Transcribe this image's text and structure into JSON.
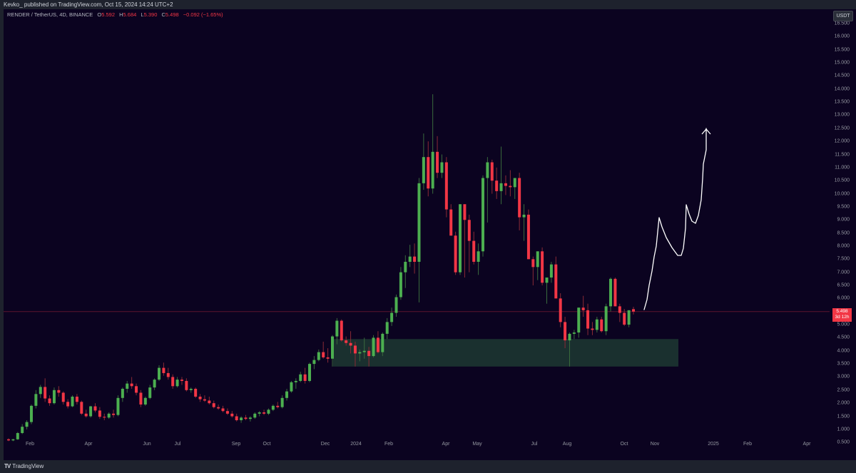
{
  "header": {
    "published": "Kevko_ published on TradingView.com, Oct 15, 2024 14:24 UTC+2"
  },
  "legend": {
    "symbol": "RENDER / TetherUS, 4D, BINANCE",
    "o_label": "O",
    "o": "5.592",
    "h_label": "H",
    "h": "5.684",
    "l_label": "L",
    "l": "5.390",
    "c_label": "C",
    "c": "5.498",
    "change": "−0.092 (−1.65%)"
  },
  "axis": {
    "currency": "USDT",
    "last_price": "5.498",
    "countdown": "3d 12h"
  },
  "footer": {
    "brand": "TradingView",
    "logo": "TV"
  },
  "colors": {
    "up": "#4caf50",
    "down": "#f23645",
    "bg": "#0b0320",
    "zone": "#1b3330",
    "drawing": "#ffffff"
  },
  "chart_data": {
    "type": "candlestick",
    "title": "RENDER / TetherUS, 4D, BINANCE",
    "xlabel": "",
    "ylabel": "USDT",
    "ylim": [
      0.3,
      16.7
    ],
    "yticks": [
      "16.500",
      "16.000",
      "15.500",
      "15.000",
      "14.500",
      "14.000",
      "13.500",
      "13.000",
      "12.500",
      "12.000",
      "11.500",
      "11.000",
      "10.500",
      "10.000",
      "9.500",
      "9.000",
      "8.500",
      "8.000",
      "7.500",
      "7.000",
      "6.500",
      "6.000",
      "5.500",
      "5.000",
      "4.500",
      "4.000",
      "3.500",
      "3.000",
      "2.500",
      "2.000",
      "1.500",
      "1.000",
      "0.500"
    ],
    "xticks": [
      {
        "label": "Feb",
        "x": 42
      },
      {
        "label": "Apr",
        "x": 124
      },
      {
        "label": "Jun",
        "x": 206
      },
      {
        "label": "Jul",
        "x": 249
      },
      {
        "label": "Sep",
        "x": 331
      },
      {
        "label": "Oct",
        "x": 374
      },
      {
        "label": "Dec",
        "x": 456
      },
      {
        "label": "2024",
        "x": 499
      },
      {
        "label": "Feb",
        "x": 545
      },
      {
        "label": "Apr",
        "x": 625
      },
      {
        "label": "May",
        "x": 669
      },
      {
        "label": "Jul",
        "x": 749
      },
      {
        "label": "Aug",
        "x": 795
      },
      {
        "label": "Oct",
        "x": 875
      },
      {
        "label": "Nov",
        "x": 918
      },
      {
        "label": "2025",
        "x": 1000
      },
      {
        "label": "Feb",
        "x": 1048
      },
      {
        "label": "Apr",
        "x": 1131
      }
    ],
    "support_zone": {
      "top": 4.45,
      "bottom": 3.4,
      "x_start": 467,
      "x_end": 951
    },
    "last_price": 5.498,
    "annotation": "hand-drawn upward projection arrow toward ~12.5",
    "candles": [
      [
        0.62,
        0.66,
        0.55,
        0.58
      ],
      [
        0.58,
        0.64,
        0.55,
        0.62
      ],
      [
        0.62,
        0.9,
        0.6,
        0.86
      ],
      [
        0.86,
        1.2,
        0.82,
        1.1
      ],
      [
        1.1,
        1.35,
        1.0,
        1.28
      ],
      [
        1.28,
        1.95,
        1.2,
        1.9
      ],
      [
        1.9,
        2.5,
        1.8,
        2.35
      ],
      [
        2.35,
        2.7,
        2.2,
        2.62
      ],
      [
        2.62,
        2.95,
        2.05,
        2.18
      ],
      [
        2.18,
        2.3,
        1.9,
        2.0
      ],
      [
        2.0,
        2.6,
        1.95,
        2.5
      ],
      [
        2.5,
        2.65,
        2.25,
        2.4
      ],
      [
        2.4,
        2.45,
        1.95,
        2.05
      ],
      [
        2.05,
        2.15,
        1.8,
        1.88
      ],
      [
        1.88,
        2.3,
        1.85,
        2.25
      ],
      [
        2.25,
        2.35,
        1.95,
        2.05
      ],
      [
        2.05,
        2.1,
        1.55,
        1.6
      ],
      [
        1.6,
        1.75,
        1.45,
        1.5
      ],
      [
        1.5,
        1.9,
        1.45,
        1.88
      ],
      [
        1.88,
        2.0,
        1.65,
        1.72
      ],
      [
        1.72,
        1.85,
        1.4,
        1.48
      ],
      [
        1.48,
        1.6,
        1.35,
        1.45
      ],
      [
        1.45,
        1.65,
        1.4,
        1.6
      ],
      [
        1.6,
        1.75,
        1.45,
        1.55
      ],
      [
        1.55,
        2.3,
        1.5,
        2.2
      ],
      [
        2.2,
        2.6,
        2.05,
        2.55
      ],
      [
        2.55,
        2.85,
        2.4,
        2.75
      ],
      [
        2.75,
        3.0,
        2.55,
        2.65
      ],
      [
        2.65,
        2.75,
        2.3,
        2.4
      ],
      [
        2.4,
        2.5,
        1.85,
        1.95
      ],
      [
        1.95,
        2.25,
        1.9,
        2.2
      ],
      [
        2.2,
        2.7,
        2.15,
        2.6
      ],
      [
        2.6,
        2.95,
        2.5,
        2.9
      ],
      [
        2.9,
        3.45,
        2.85,
        3.35
      ],
      [
        3.35,
        3.55,
        3.05,
        3.15
      ],
      [
        3.15,
        3.35,
        2.9,
        3.0
      ],
      [
        3.0,
        3.1,
        2.55,
        2.65
      ],
      [
        2.65,
        3.0,
        2.6,
        2.9
      ],
      [
        2.9,
        3.0,
        2.7,
        2.85
      ],
      [
        2.85,
        2.95,
        2.45,
        2.5
      ],
      [
        2.5,
        2.6,
        2.4,
        2.55
      ],
      [
        2.55,
        2.6,
        2.2,
        2.25
      ],
      [
        2.25,
        2.35,
        2.05,
        2.15
      ],
      [
        2.15,
        2.3,
        2.05,
        2.1
      ],
      [
        2.1,
        2.25,
        1.95,
        2.0
      ],
      [
        2.0,
        2.1,
        1.8,
        1.85
      ],
      [
        1.85,
        1.95,
        1.75,
        1.8
      ],
      [
        1.8,
        1.9,
        1.65,
        1.7
      ],
      [
        1.7,
        1.8,
        1.55,
        1.6
      ],
      [
        1.6,
        1.7,
        1.45,
        1.5
      ],
      [
        1.5,
        1.6,
        1.3,
        1.35
      ],
      [
        1.35,
        1.5,
        1.25,
        1.45
      ],
      [
        1.45,
        1.55,
        1.35,
        1.4
      ],
      [
        1.4,
        1.5,
        1.3,
        1.45
      ],
      [
        1.45,
        1.65,
        1.4,
        1.6
      ],
      [
        1.6,
        1.7,
        1.5,
        1.65
      ],
      [
        1.65,
        1.75,
        1.55,
        1.6
      ],
      [
        1.6,
        1.8,
        1.55,
        1.75
      ],
      [
        1.75,
        1.95,
        1.7,
        1.9
      ],
      [
        1.9,
        2.05,
        1.8,
        1.85
      ],
      [
        1.85,
        2.3,
        1.8,
        2.2
      ],
      [
        2.2,
        2.55,
        2.1,
        2.45
      ],
      [
        2.45,
        2.85,
        2.4,
        2.8
      ],
      [
        2.8,
        2.95,
        2.55,
        2.85
      ],
      [
        2.85,
        3.2,
        2.8,
        3.1
      ],
      [
        3.1,
        3.35,
        2.75,
        2.85
      ],
      [
        2.85,
        3.55,
        2.8,
        3.5
      ],
      [
        3.5,
        3.8,
        3.3,
        3.65
      ],
      [
        3.65,
        4.05,
        3.6,
        3.95
      ],
      [
        3.95,
        4.35,
        3.7,
        3.75
      ],
      [
        3.75,
        4.1,
        3.55,
        3.7
      ],
      [
        3.7,
        4.6,
        3.4,
        4.55
      ],
      [
        4.55,
        5.25,
        4.25,
        5.15
      ],
      [
        5.15,
        5.2,
        4.35,
        4.4
      ],
      [
        4.4,
        4.55,
        4.2,
        4.3
      ],
      [
        4.3,
        4.75,
        3.9,
        4.2
      ],
      [
        4.2,
        4.35,
        3.4,
        3.9
      ],
      [
        3.9,
        4.05,
        3.6,
        3.95
      ],
      [
        3.95,
        4.5,
        3.7,
        4.0
      ],
      [
        4.0,
        4.15,
        3.4,
        3.8
      ],
      [
        3.8,
        4.6,
        3.75,
        4.5
      ],
      [
        4.5,
        4.75,
        3.9,
        3.95
      ],
      [
        3.95,
        4.7,
        3.8,
        4.65
      ],
      [
        4.65,
        5.25,
        4.45,
        5.1
      ],
      [
        5.1,
        5.65,
        4.95,
        5.45
      ],
      [
        5.45,
        6.15,
        5.3,
        6.05
      ],
      [
        6.05,
        7.2,
        5.95,
        7.0
      ],
      [
        7.0,
        7.65,
        6.4,
        7.4
      ],
      [
        7.4,
        8.05,
        7.2,
        7.6
      ],
      [
        7.6,
        8.1,
        6.95,
        7.4
      ],
      [
        7.4,
        10.6,
        5.85,
        10.4
      ],
      [
        10.4,
        12.3,
        10.15,
        11.4
      ],
      [
        11.4,
        12.0,
        9.9,
        10.2
      ],
      [
        10.2,
        13.8,
        10.0,
        11.6
      ],
      [
        11.6,
        12.2,
        10.6,
        10.8
      ],
      [
        10.8,
        11.5,
        10.6,
        11.2
      ],
      [
        11.2,
        11.4,
        9.1,
        9.4
      ],
      [
        9.4,
        9.6,
        8.5,
        8.4
      ],
      [
        8.4,
        8.55,
        6.9,
        7.0
      ],
      [
        7.0,
        9.2,
        6.9,
        9.6
      ],
      [
        9.6,
        9.1,
        6.8,
        9.0
      ],
      [
        9.0,
        9.2,
        7.0,
        8.2
      ],
      [
        8.2,
        8.55,
        7.3,
        7.4
      ],
      [
        7.4,
        8.1,
        6.9,
        7.8
      ],
      [
        7.8,
        10.7,
        7.6,
        10.6
      ],
      [
        10.6,
        11.4,
        8.9,
        11.2
      ],
      [
        11.2,
        11.3,
        10.0,
        10.5
      ],
      [
        10.5,
        11.0,
        9.8,
        10.1
      ],
      [
        10.1,
        11.8,
        9.6,
        10.4
      ],
      [
        10.4,
        10.7,
        9.95,
        10.3
      ],
      [
        10.3,
        10.9,
        9.9,
        10.25
      ],
      [
        10.25,
        10.6,
        9.8,
        10.6
      ],
      [
        10.6,
        10.8,
        8.6,
        9.1
      ],
      [
        9.1,
        9.6,
        8.2,
        9.2
      ],
      [
        9.2,
        9.4,
        8.0,
        7.5
      ],
      [
        7.5,
        7.6,
        6.5,
        7.2
      ],
      [
        7.2,
        7.8,
        6.7,
        7.8
      ],
      [
        7.8,
        7.95,
        6.5,
        6.6
      ],
      [
        6.6,
        6.8,
        5.8,
        6.8
      ],
      [
        6.8,
        7.4,
        6.6,
        7.3
      ],
      [
        7.3,
        7.6,
        6.1,
        6.0
      ],
      [
        6.0,
        6.2,
        4.9,
        5.1
      ],
      [
        5.1,
        5.3,
        4.1,
        4.4
      ],
      [
        4.4,
        4.7,
        3.4,
        4.65
      ],
      [
        4.65,
        4.8,
        4.45,
        4.7
      ],
      [
        4.7,
        5.6,
        4.5,
        5.65
      ],
      [
        5.65,
        6.1,
        5.3,
        5.55
      ],
      [
        5.55,
        5.8,
        4.6,
        4.85
      ],
      [
        4.85,
        5.1,
        4.6,
        4.8
      ],
      [
        4.8,
        5.3,
        4.7,
        5.2
      ],
      [
        5.2,
        5.3,
        4.7,
        4.75
      ],
      [
        4.75,
        5.8,
        4.6,
        5.7
      ],
      [
        5.7,
        6.8,
        5.5,
        6.75
      ],
      [
        6.75,
        6.8,
        5.8,
        5.7
      ],
      [
        5.7,
        5.8,
        5.1,
        5.45
      ],
      [
        5.45,
        5.6,
        4.95,
        5.0
      ],
      [
        5.0,
        5.5,
        4.9,
        5.55
      ],
      [
        5.592,
        5.684,
        5.39,
        5.498
      ]
    ]
  }
}
